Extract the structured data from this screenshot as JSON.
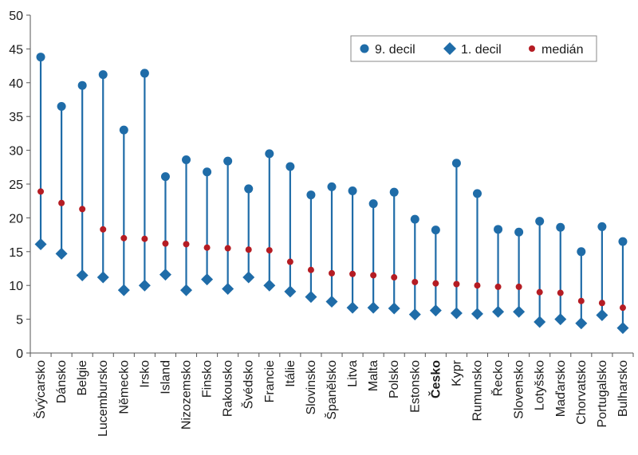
{
  "chart_data": {
    "type": "range",
    "ylim": [
      0,
      50
    ],
    "yticks": [
      0,
      5,
      10,
      15,
      20,
      25,
      30,
      35,
      40,
      45,
      50
    ],
    "grid": false,
    "legend_position": "top-right",
    "highlight_category": "Česko",
    "colors": {
      "range": "#1f6ca8",
      "median": "#b51c23",
      "axis": "#555555"
    },
    "categories": [
      "Švýcarsko",
      "Dánsko",
      "Belgie",
      "Lucembursko",
      "Německo",
      "Irsko",
      "Island",
      "Nizozemsko",
      "Finsko",
      "Rakousko",
      "Švédsko",
      "Francie",
      "Itálie",
      "Slovinsko",
      "Španělsko",
      "Litva",
      "Malta",
      "Polsko",
      "Estonsko",
      "Česko",
      "Kypr",
      "Rumunsko",
      "Řecko",
      "Slovensko",
      "Lotyšsko",
      "Maďarsko",
      "Chorvatsko",
      "Portugalsko",
      "Bulharsko"
    ],
    "series": [
      {
        "name": "9. decil",
        "marker": "circle",
        "values": [
          43.8,
          36.5,
          39.6,
          41.2,
          33.0,
          41.4,
          26.1,
          28.6,
          26.8,
          28.4,
          24.3,
          29.5,
          27.6,
          23.4,
          24.6,
          24.0,
          22.1,
          23.8,
          19.8,
          18.2,
          28.1,
          23.6,
          18.3,
          17.9,
          19.5,
          18.6,
          15.0,
          18.7,
          16.5
        ]
      },
      {
        "name": "1. decil",
        "marker": "diamond",
        "values": [
          16.1,
          14.7,
          11.5,
          11.2,
          9.3,
          10.0,
          11.6,
          9.3,
          10.9,
          9.5,
          11.2,
          10.0,
          9.1,
          8.3,
          7.6,
          6.7,
          6.7,
          6.6,
          5.7,
          6.3,
          5.9,
          5.8,
          6.1,
          6.1,
          4.6,
          5.0,
          4.4,
          5.6,
          3.7
        ]
      },
      {
        "name": "medián",
        "marker": "dot",
        "values": [
          23.9,
          22.2,
          21.3,
          18.3,
          17.0,
          16.9,
          16.2,
          16.1,
          15.6,
          15.5,
          15.3,
          15.2,
          13.5,
          12.3,
          11.8,
          11.7,
          11.5,
          11.2,
          10.5,
          10.3,
          10.2,
          10.0,
          9.8,
          9.8,
          9.0,
          8.9,
          7.7,
          7.4,
          6.7
        ]
      }
    ]
  }
}
